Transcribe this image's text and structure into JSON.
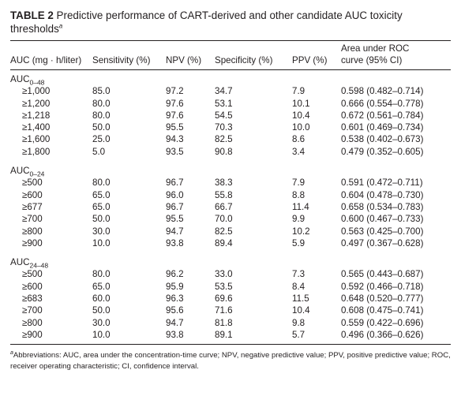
{
  "caption": {
    "label": "TABLE 2",
    "text": "Predictive performance of CART-derived and other candidate AUC toxicity thresholds",
    "footnote_mark": "a"
  },
  "headers": {
    "auc": "AUC (mg · h/liter)",
    "sensitivity": "Sensitivity (%)",
    "npv": "NPV (%)",
    "specificity": "Specificity (%)",
    "ppv": "PPV (%)",
    "roc_line1": "Area under ROC",
    "roc_line2": "curve (95% CI)"
  },
  "groups": [
    {
      "name": "AUC",
      "sub": "0–48",
      "rows": [
        {
          "thr": "≥1,000",
          "sens": "85.0",
          "npv": "97.2",
          "spec": "34.7",
          "ppv": "7.9",
          "roc": "0.598 (0.482–0.714)"
        },
        {
          "thr": "≥1,200",
          "sens": "80.0",
          "npv": "97.6",
          "spec": "53.1",
          "ppv": "10.1",
          "roc": "0.666 (0.554–0.778)"
        },
        {
          "thr": "≥1,218",
          "sens": "80.0",
          "npv": "97.6",
          "spec": "54.5",
          "ppv": "10.4",
          "roc": "0.672 (0.561–0.784)"
        },
        {
          "thr": "≥1,400",
          "sens": "50.0",
          "npv": "95.5",
          "spec": "70.3",
          "ppv": "10.0",
          "roc": "0.601 (0.469–0.734)"
        },
        {
          "thr": "≥1,600",
          "sens": "25.0",
          "npv": "94.3",
          "spec": "82.5",
          "ppv": "8.6",
          "roc": "0.538 (0.402–0.673)"
        },
        {
          "thr": "≥1,800",
          "sens": "5.0",
          "npv": "93.5",
          "spec": "90.8",
          "ppv": "3.4",
          "roc": "0.479 (0.352–0.605)"
        }
      ]
    },
    {
      "name": "AUC",
      "sub": "0–24",
      "rows": [
        {
          "thr": "≥500",
          "sens": "80.0",
          "npv": "96.7",
          "spec": "38.3",
          "ppv": "7.9",
          "roc": "0.591 (0.472–0.711)"
        },
        {
          "thr": "≥600",
          "sens": "65.0",
          "npv": "96.0",
          "spec": "55.8",
          "ppv": "8.8",
          "roc": "0.604 (0.478–0.730)"
        },
        {
          "thr": "≥677",
          "sens": "65.0",
          "npv": "96.7",
          "spec": "66.7",
          "ppv": "11.4",
          "roc": "0.658 (0.534–0.783)"
        },
        {
          "thr": "≥700",
          "sens": "50.0",
          "npv": "95.5",
          "spec": "70.0",
          "ppv": "9.9",
          "roc": "0.600 (0.467–0.733)"
        },
        {
          "thr": "≥800",
          "sens": "30.0",
          "npv": "94.7",
          "spec": "82.5",
          "ppv": "10.2",
          "roc": "0.563 (0.425–0.700)"
        },
        {
          "thr": "≥900",
          "sens": "10.0",
          "npv": "93.8",
          "spec": "89.4",
          "ppv": "5.9",
          "roc": "0.497 (0.367–0.628)"
        }
      ]
    },
    {
      "name": "AUC",
      "sub": "24–48",
      "rows": [
        {
          "thr": "≥500",
          "sens": "80.0",
          "npv": "96.2",
          "spec": "33.0",
          "ppv": "7.3",
          "roc": "0.565 (0.443–0.687)"
        },
        {
          "thr": "≥600",
          "sens": "65.0",
          "npv": "95.9",
          "spec": "53.5",
          "ppv": "8.4",
          "roc": "0.592 (0.466–0.718)"
        },
        {
          "thr": "≥683",
          "sens": "60.0",
          "npv": "96.3",
          "spec": "69.6",
          "ppv": "11.5",
          "roc": "0.648 (0.520–0.777)"
        },
        {
          "thr": "≥700",
          "sens": "50.0",
          "npv": "95.6",
          "spec": "71.6",
          "ppv": "10.4",
          "roc": "0.608 (0.475–0.741)"
        },
        {
          "thr": "≥800",
          "sens": "30.0",
          "npv": "94.7",
          "spec": "81.8",
          "ppv": "9.8",
          "roc": "0.559 (0.422–0.696)"
        },
        {
          "thr": "≥900",
          "sens": "10.0",
          "npv": "93.8",
          "spec": "89.1",
          "ppv": "5.7",
          "roc": "0.496 (0.366–0.626)"
        }
      ]
    }
  ],
  "footnote": {
    "mark": "a",
    "text": "Abbreviations: AUC, area under the concentration-time curve; NPV, negative predictive value; PPV, positive predictive value; ROC, receiver operating characteristic; CI, confidence interval."
  }
}
